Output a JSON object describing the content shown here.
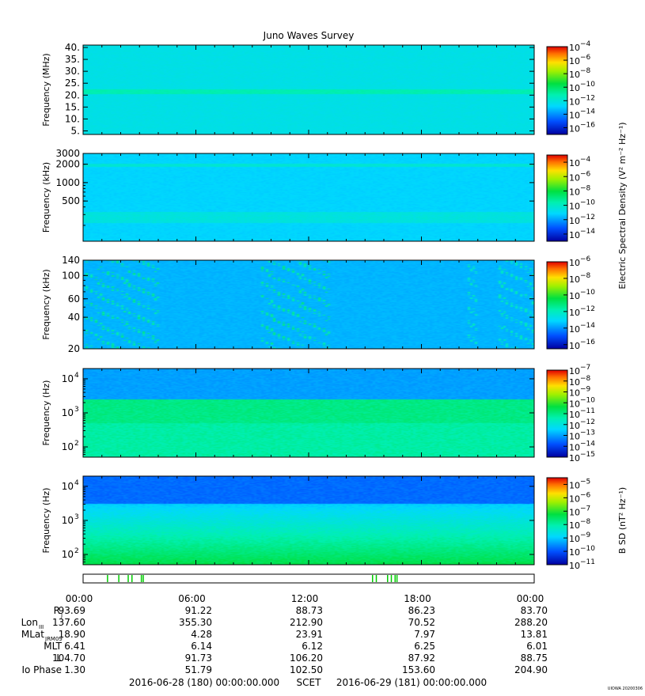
{
  "chart_data": {
    "type": "heatmap",
    "title": "Juno Waves Survey",
    "x_range": [
      "2016-06-28 00:00",
      "2016-06-29 00:00"
    ],
    "x_ticks": [
      "00:00",
      "06:00",
      "12:00",
      "18:00",
      "00:00"
    ],
    "panels": [
      {
        "ylabel": "Frequency (MHz)",
        "ylim": [
          3.5,
          41
        ],
        "yscale": "linear",
        "y_ticks": [
          {
            "v": 5,
            "label": "5."
          },
          {
            "v": 10,
            "label": "10."
          },
          {
            "v": 15,
            "label": "15."
          },
          {
            "v": 20,
            "label": "20."
          },
          {
            "v": 25,
            "label": "25."
          },
          {
            "v": 30,
            "label": "30."
          },
          {
            "v": 35,
            "label": "35."
          },
          {
            "v": 40,
            "label": "40."
          }
        ],
        "colorbar_exponents": [
          -4,
          -6,
          -8,
          -10,
          -12,
          -14,
          -16
        ],
        "colorbar_range": [
          -17,
          -4
        ],
        "base_level": -12.3,
        "features": [
          {
            "kind": "band",
            "ymin": 20.5,
            "ymax": 22.5,
            "level": -11.2
          }
        ]
      },
      {
        "ylabel": "Frequency (kHz)",
        "ylim": [
          110,
          3000
        ],
        "yscale": "log",
        "y_ticks": [
          {
            "v": 500,
            "label": "500"
          },
          {
            "v": 1000,
            "label": "1000"
          },
          {
            "v": 2000,
            "label": "2000"
          },
          {
            "v": 3000,
            "label": "3000"
          }
        ],
        "colorbar_exponents": [
          -4,
          -6,
          -8,
          -10,
          -12,
          -14
        ],
        "colorbar_range": [
          -15,
          -3
        ],
        "base_level": -11.2,
        "features": [
          {
            "kind": "band",
            "ymin": 1800,
            "ymax": 2050,
            "level": -10.3
          },
          {
            "kind": "band",
            "ymin": 220,
            "ymax": 330,
            "level": -10.5
          }
        ]
      },
      {
        "ylabel": "Frequency (kHz)",
        "ylim": [
          20,
          140
        ],
        "yscale": "log",
        "y_ticks": [
          {
            "v": 20,
            "label": "20"
          },
          {
            "v": 40,
            "label": "40"
          },
          {
            "v": 60,
            "label": "60"
          },
          {
            "v": 100,
            "label": "100"
          },
          {
            "v": 140,
            "label": "140"
          }
        ],
        "colorbar_exponents": [
          -6,
          -8,
          -10,
          -12,
          -14,
          -16
        ],
        "colorbar_range": [
          -16.5,
          -6
        ],
        "colorbar_label": "Electric Spectral Density (V² m⁻² Hz⁻¹)",
        "base_level": -13.6,
        "features": [
          {
            "kind": "bursts",
            "t_start": 0.1,
            "t_end": 4.0,
            "level": -11.5
          },
          {
            "kind": "bursts",
            "t_start": 9.5,
            "t_end": 13.2,
            "level": -11.5
          },
          {
            "kind": "bursts",
            "t_start": 20.5,
            "t_end": 21.0,
            "level": -12.0
          },
          {
            "kind": "bursts",
            "t_start": 22.0,
            "t_end": 24.0,
            "level": -12.0
          }
        ]
      },
      {
        "ylabel": "Frequency (Hz)",
        "ylim": [
          50,
          20000
        ],
        "yscale": "log",
        "y_ticks": [
          {
            "v": 100,
            "label": "10",
            "exp": "2"
          },
          {
            "v": 1000,
            "label": "10",
            "exp": "3"
          },
          {
            "v": 10000,
            "label": "10",
            "exp": "4"
          }
        ],
        "colorbar_exponents": [
          -7,
          -8,
          -9,
          -10,
          -11,
          -12,
          -13,
          -14,
          -15
        ],
        "colorbar_range": [
          -15,
          -7
        ],
        "base_level": -13.0,
        "features": [
          {
            "kind": "band",
            "ymin": 500,
            "ymax": 2500,
            "level": -11.0
          },
          {
            "kind": "band",
            "ymin": 50,
            "ymax": 500,
            "level": -11.3
          }
        ]
      },
      {
        "ylabel": "Frequency (Hz)",
        "ylim": [
          50,
          20000
        ],
        "yscale": "log",
        "y_ticks": [
          {
            "v": 100,
            "label": "10",
            "exp": "2"
          },
          {
            "v": 1000,
            "label": "10",
            "exp": "3"
          },
          {
            "v": 10000,
            "label": "10",
            "exp": "4"
          }
        ],
        "colorbar_exponents": [
          -5,
          -6,
          -7,
          -8,
          -9,
          -10,
          -11
        ],
        "colorbar_range": [
          -11,
          -4.5
        ],
        "colorbar_label": "B SD (nT² Hz⁻¹)",
        "base_level": -9.8,
        "features": [
          {
            "kind": "gradient",
            "ymin": 50,
            "ymax": 3000,
            "level_low": -7.3,
            "level_high": -9.0
          }
        ]
      }
    ],
    "mode_bar_marks_hours": [
      1.3,
      1.9,
      2.4,
      2.6,
      3.1,
      3.2,
      15.4,
      15.6,
      16.2,
      16.4,
      16.6,
      16.7
    ],
    "ephemeris": {
      "rows": [
        {
          "label": "R",
          "sub": "J",
          "values": [
            "93.69",
            "91.22",
            "88.73",
            "86.23",
            "83.70"
          ]
        },
        {
          "label": "Lon",
          "sub": "III",
          "values": [
            "137.60",
            "355.30",
            "212.90",
            "70.52",
            "288.20"
          ]
        },
        {
          "label": "MLat",
          "sub": "JRM09",
          "values": [
            "18.90",
            "4.28",
            "23.91",
            "7.97",
            "13.81"
          ]
        },
        {
          "label": "MLT",
          "sub": "",
          "values": [
            "6.41",
            "6.14",
            "6.12",
            "6.25",
            "6.01"
          ]
        },
        {
          "label": "L",
          "sub": "",
          "values": [
            "104.70",
            "91.73",
            "106.20",
            "87.92",
            "88.75"
          ]
        },
        {
          "label": "Io Phase",
          "sub": "",
          "values": [
            "1.30",
            "51.79",
            "102.50",
            "153.60",
            "204.90"
          ]
        }
      ]
    },
    "footer": {
      "start": "2016-06-28 (180) 00:00:00.000",
      "scet": "SCET",
      "end": "2016-06-29 (181) 00:00:00.000",
      "credit": "UIOWA 20200306"
    }
  }
}
